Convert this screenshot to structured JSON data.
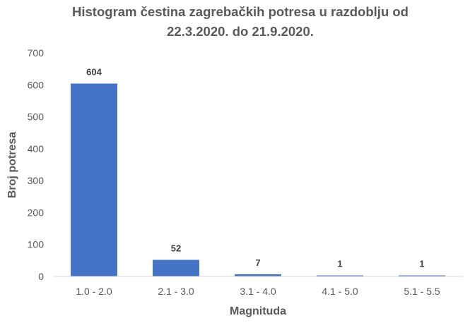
{
  "chart_data": {
    "type": "bar",
    "title_line1": "Histogram  čestina zagrebačkih  potresa  u razdoblju  od",
    "title_line2": "22.3.2020. do 21.9.2020.",
    "xlabel": "Magnituda",
    "ylabel": "Broj potresa",
    "categories": [
      "1.0 - 2.0",
      "2.1 - 3.0",
      "3.1 - 4.0",
      "4.1 - 5.0",
      "5.1 - 5.5"
    ],
    "values": [
      604,
      52,
      7,
      1,
      1
    ],
    "data_labels": [
      "604",
      "52",
      "7",
      "1",
      "1"
    ],
    "ylim": [
      0,
      700
    ],
    "yticks": [
      0,
      100,
      200,
      300,
      400,
      500,
      600,
      700
    ],
    "grid": false,
    "legend": "none",
    "bar_color": "#4472C4"
  }
}
